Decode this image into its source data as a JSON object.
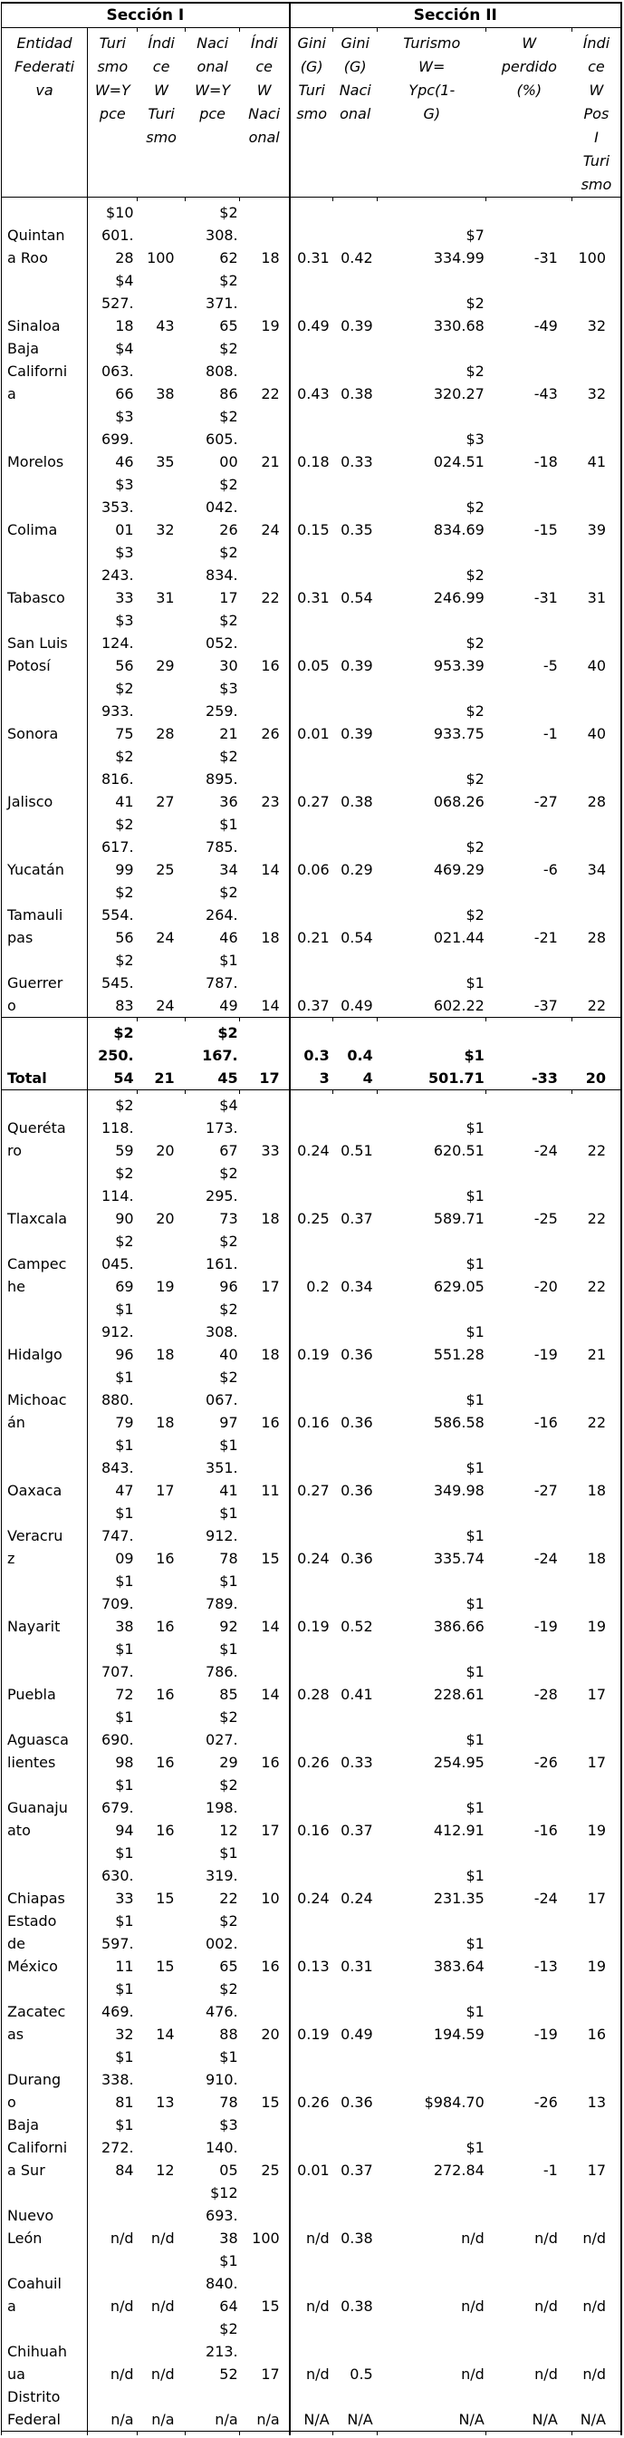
{
  "table": {
    "sections": [
      "Sección I",
      "Sección II"
    ],
    "columns": [
      "Entidad\nFederati\nva",
      "Turi\nsmo\nW=Y\npce",
      "Índi\nce\nW\nTuri\nsmo",
      "Naci\nonal\nW=Y\npce",
      "Índi\nce\nW\nNaci\nonal",
      "Gini\n(G)\nTuri\nsmo",
      "Gini\n(G)\nNaci\nonal",
      "Turismo\nW=\nYpc(1-\nG)",
      "W\nperdido\n(%)",
      "Índi\nce\nW\nPos\nI\nTuri\nsmo"
    ],
    "rows": [
      {
        "cells": [
          "Quintan\na Roo",
          "$10\n601.\n28",
          "100",
          "$2\n308.\n62",
          "18",
          "0.31",
          "0.42",
          "$7\n334.99",
          "-31",
          "100"
        ],
        "bold": false
      },
      {
        "cells": [
          "Sinaloa",
          "$4\n527.\n18",
          "43",
          "$2\n371.\n65",
          "19",
          "0.49",
          "0.39",
          "$2\n330.68",
          "-49",
          "32"
        ],
        "bold": false
      },
      {
        "cells": [
          "Baja\nCaliforni\na",
          "$4\n063.\n66",
          "38",
          "$2\n808.\n86",
          "22",
          "0.43",
          "0.38",
          "$2\n320.27",
          "-43",
          "32"
        ],
        "bold": false
      },
      {
        "cells": [
          "Morelos",
          "$3\n699.\n46",
          "35",
          "$2\n605.\n00",
          "21",
          "0.18",
          "0.33",
          "$3\n024.51",
          "-18",
          "41"
        ],
        "bold": false
      },
      {
        "cells": [
          "Colima",
          "$3\n353.\n01",
          "32",
          "$2\n042.\n26",
          "24",
          "0.15",
          "0.35",
          "$2\n834.69",
          "-15",
          "39"
        ],
        "bold": false
      },
      {
        "cells": [
          "Tabasco",
          "$3\n243.\n33",
          "31",
          "$2\n834.\n17",
          "22",
          "0.31",
          "0.54",
          "$2\n246.99",
          "-31",
          "31"
        ],
        "bold": false
      },
      {
        "cells": [
          "San Luis\nPotosí",
          "$3\n124.\n56",
          "29",
          "$2\n052.\n30",
          "16",
          "0.05",
          "0.39",
          "$2\n953.39",
          "-5",
          "40"
        ],
        "bold": false
      },
      {
        "cells": [
          "Sonora",
          "$2\n933.\n75",
          "28",
          "$3\n259.\n21",
          "26",
          "0.01",
          "0.39",
          "$2\n933.75",
          "-1",
          "40"
        ],
        "bold": false
      },
      {
        "cells": [
          "Jalisco",
          "$2\n816.\n41",
          "27",
          "$2\n895.\n36",
          "23",
          "0.27",
          "0.38",
          "$2\n068.26",
          "-27",
          "28"
        ],
        "bold": false
      },
      {
        "cells": [
          "Yucatán",
          "$2\n617.\n99",
          "25",
          "$1\n785.\n34",
          "14",
          "0.06",
          "0.29",
          "$2\n469.29",
          "-6",
          "34"
        ],
        "bold": false
      },
      {
        "cells": [
          "Tamauli\npas",
          "$2\n554.\n56",
          "24",
          "$2\n264.\n46",
          "18",
          "0.21",
          "0.54",
          "$2\n021.44",
          "-21",
          "28"
        ],
        "bold": false
      },
      {
        "cells": [
          "Guerrer\no",
          "$2\n545.\n83",
          "24",
          "$1\n787.\n49",
          "14",
          "0.37",
          "0.49",
          "$1\n602.22",
          "-37",
          "22"
        ],
        "bold": false
      },
      {
        "cells": [
          "Total",
          "$2\n250.\n54",
          "21",
          "$2\n167.\n45",
          "17",
          "0.3\n3",
          "0.4\n4",
          "$1\n501.71",
          "-33",
          "20"
        ],
        "bold": true
      },
      {
        "cells": [
          "Queréta\nro",
          "$2\n118.\n59",
          "20",
          "$4\n173.\n67",
          "33",
          "0.24",
          "0.51",
          "$1\n620.51",
          "-24",
          "22"
        ],
        "bold": false
      },
      {
        "cells": [
          "Tlaxcala",
          "$2\n114.\n90",
          "20",
          "$2\n295.\n73",
          "18",
          "0.25",
          "0.37",
          "$1\n589.71",
          "-25",
          "22"
        ],
        "bold": false
      },
      {
        "cells": [
          "Campec\nhe",
          "$2\n045.\n69",
          "19",
          "$2\n161.\n96",
          "17",
          "0.2",
          "0.34",
          "$1\n629.05",
          "-20",
          "22"
        ],
        "bold": false
      },
      {
        "cells": [
          "Hidalgo",
          "$1\n912.\n96",
          "18",
          "$2\n308.\n40",
          "18",
          "0.19",
          "0.36",
          "$1\n551.28",
          "-19",
          "21"
        ],
        "bold": false
      },
      {
        "cells": [
          "Michoac\nán",
          "$1\n880.\n79",
          "18",
          "$2\n067.\n97",
          "16",
          "0.16",
          "0.36",
          "$1\n586.58",
          "-16",
          "22"
        ],
        "bold": false
      },
      {
        "cells": [
          "Oaxaca",
          "$1\n843.\n47",
          "17",
          "$1\n351.\n41",
          "11",
          "0.27",
          "0.36",
          "$1\n349.98",
          "-27",
          "18"
        ],
        "bold": false
      },
      {
        "cells": [
          "Veracru\nz",
          "$1\n747.\n09",
          "16",
          "$1\n912.\n78",
          "15",
          "0.24",
          "0.36",
          "$1\n335.74",
          "-24",
          "18"
        ],
        "bold": false
      },
      {
        "cells": [
          "Nayarit",
          "$1\n709.\n38",
          "16",
          "$1\n789.\n92",
          "14",
          "0.19",
          "0.52",
          "$1\n386.66",
          "-19",
          "19"
        ],
        "bold": false
      },
      {
        "cells": [
          "Puebla",
          "$1\n707.\n72",
          "16",
          "$1\n786.\n85",
          "14",
          "0.28",
          "0.41",
          "$1\n228.61",
          "-28",
          "17"
        ],
        "bold": false
      },
      {
        "cells": [
          "Aguasca\nlientes",
          "$1\n690.\n98",
          "16",
          "$2\n027.\n29",
          "16",
          "0.26",
          "0.33",
          "$1\n254.95",
          "-26",
          "17"
        ],
        "bold": false
      },
      {
        "cells": [
          "Guanaju\nato",
          "$1\n679.\n94",
          "16",
          "$2\n198.\n12",
          "17",
          "0.16",
          "0.37",
          "$1\n412.91",
          "-16",
          "19"
        ],
        "bold": false
      },
      {
        "cells": [
          "Chiapas",
          "$1\n630.\n33",
          "15",
          "$1\n319.\n22",
          "10",
          "0.24",
          "0.24",
          "$1\n231.35",
          "-24",
          "17"
        ],
        "bold": false
      },
      {
        "cells": [
          "Estado\nde\nMéxico",
          "$1\n597.\n11",
          "15",
          "$2\n002.\n65",
          "16",
          "0.13",
          "0.31",
          "$1\n383.64",
          "-13",
          "19"
        ],
        "bold": false
      },
      {
        "cells": [
          "Zacatec\nas",
          "$1\n469.\n32",
          "14",
          "$2\n476.\n88",
          "20",
          "0.19",
          "0.49",
          "$1\n194.59",
          "-19",
          "16"
        ],
        "bold": false
      },
      {
        "cells": [
          "Durang\no",
          "$1\n338.\n81",
          "13",
          "$1\n910.\n78",
          "15",
          "0.26",
          "0.36",
          "$984.70",
          "-26",
          "13"
        ],
        "bold": false
      },
      {
        "cells": [
          "Baja\nCaliforni\na Sur",
          "$1\n272.\n84",
          "12",
          "$3\n140.\n05",
          "25",
          "0.01",
          "0.37",
          "$1\n272.84",
          "-1",
          "17"
        ],
        "bold": false
      },
      {
        "cells": [
          "Nuevo\nLeón",
          "n/d",
          "n/d",
          "$12\n693.\n38",
          "100",
          "n/d",
          "0.38",
          "n/d",
          "n/d",
          "n/d"
        ],
        "bold": false
      },
      {
        "cells": [
          "Coahuil\na",
          "n/d",
          "n/d",
          "$1\n840.\n64",
          "15",
          "n/d",
          "0.38",
          "n/d",
          "n/d",
          "n/d"
        ],
        "bold": false
      },
      {
        "cells": [
          "Chihuah\nua",
          "n/d",
          "n/d",
          "$2\n213.\n52",
          "17",
          "n/d",
          "0.5",
          "n/d",
          "n/d",
          "n/d"
        ],
        "bold": false
      },
      {
        "cells": [
          "Distrito\nFederal",
          "n/a",
          "n/a",
          "n/a",
          "n/a",
          "N/A",
          "N/A",
          "N/A",
          "N/A",
          "N/A"
        ],
        "bold": false
      }
    ]
  }
}
